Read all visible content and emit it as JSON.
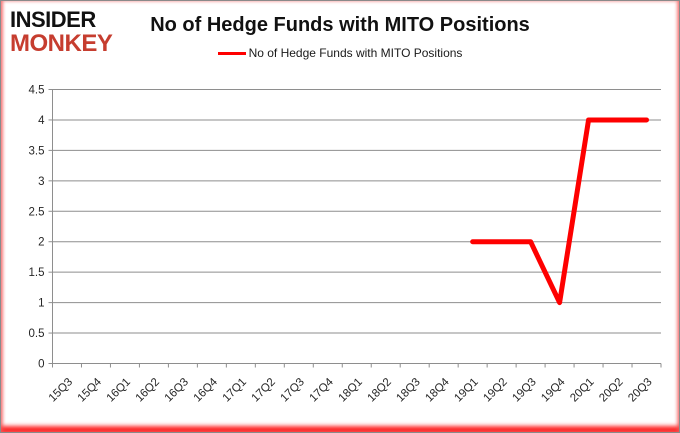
{
  "logo": {
    "line1": "INSIDER",
    "line2": "MONKEY"
  },
  "header": {
    "title": "No of Hedge Funds with MITO Positions"
  },
  "legend": {
    "label": "No of Hedge Funds with MITO Positions"
  },
  "colors": {
    "series": "#fe0000",
    "grid": "#8e8e8e",
    "axis": "#8e8e8e",
    "axis_text": "#262626",
    "logo_black": "#111111",
    "logo_red": "#c63d2f"
  },
  "chart_data": {
    "type": "line",
    "title": "No of Hedge Funds with MITO Positions",
    "categories": [
      "15Q3",
      "15Q4",
      "16Q1",
      "16Q2",
      "16Q3",
      "16Q4",
      "17Q1",
      "17Q2",
      "17Q3",
      "17Q4",
      "18Q1",
      "18Q2",
      "18Q3",
      "18Q4",
      "19Q1",
      "19Q2",
      "19Q3",
      "19Q4",
      "20Q1",
      "20Q2",
      "20Q3"
    ],
    "series": [
      {
        "name": "No of Hedge Funds with MITO Positions",
        "values": [
          null,
          null,
          null,
          null,
          null,
          null,
          null,
          null,
          null,
          null,
          null,
          null,
          null,
          null,
          2,
          2,
          2,
          1,
          4,
          4,
          4
        ]
      }
    ],
    "xlabel": "",
    "ylabel": "",
    "ylim": [
      0,
      4.5
    ],
    "ytick_step": 0.5,
    "yticks": [
      "0",
      "0.5",
      "1",
      "1.5",
      "2",
      "2.5",
      "3",
      "3.5",
      "4",
      "4.5"
    ],
    "grid": "horizontal",
    "legend_position": "top"
  }
}
